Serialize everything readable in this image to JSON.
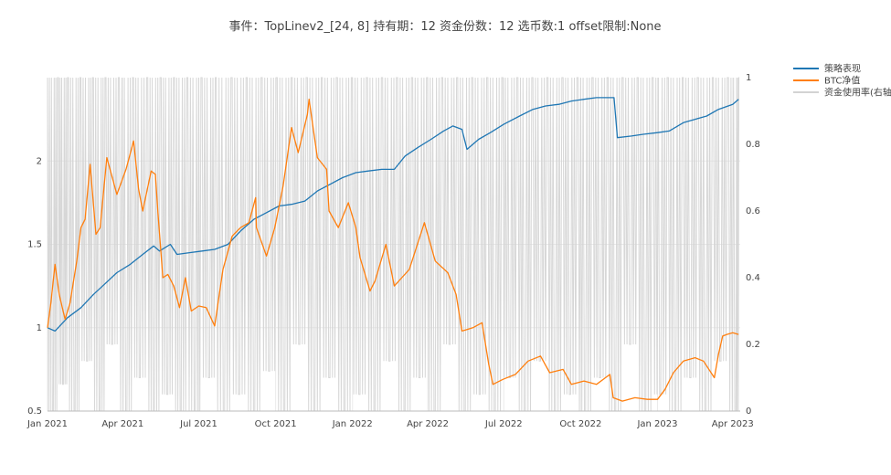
{
  "chart_data": {
    "type": "line",
    "title": "事件：TopLinev2_[24, 8] 持有期：12 资金份数：12 选币数:1 offset限制:None",
    "xlabel": "",
    "ylabel": "",
    "x_range": [
      "2021-01-01",
      "2023-04-10"
    ],
    "x_ticks": [
      {
        "date": "2021-01-01",
        "label": "Jan 2021"
      },
      {
        "date": "2021-04-01",
        "label": "Apr 2021"
      },
      {
        "date": "2021-07-01",
        "label": "Jul 2021"
      },
      {
        "date": "2021-10-01",
        "label": "Oct 2021"
      },
      {
        "date": "2022-01-01",
        "label": "Jan 2022"
      },
      {
        "date": "2022-04-01",
        "label": "Apr 2022"
      },
      {
        "date": "2022-07-01",
        "label": "Jul 2022"
      },
      {
        "date": "2022-10-01",
        "label": "Oct 2022"
      },
      {
        "date": "2023-01-01",
        "label": "Jan 2023"
      },
      {
        "date": "2023-04-01",
        "label": "Apr 2023"
      }
    ],
    "y_left": {
      "ylim": [
        0.5,
        2.5
      ],
      "ticks": [
        0.5,
        1,
        1.5,
        2
      ],
      "tick_labels": [
        "0.5",
        "1",
        "1.5",
        "2"
      ]
    },
    "y_right": {
      "ylim": [
        0,
        1
      ],
      "ticks": [
        0,
        0.2,
        0.4,
        0.6,
        0.8,
        1
      ],
      "tick_labels": [
        "0",
        "0.2",
        "0.4",
        "0.6",
        "0.8",
        "1"
      ]
    },
    "grid": true,
    "legend_position": "top-right",
    "series": [
      {
        "name": "策略表现",
        "color": "#1f77b4",
        "axis": "left",
        "points": [
          [
            "2021-01-01",
            1.0
          ],
          [
            "2021-01-10",
            0.98
          ],
          [
            "2021-01-25",
            1.06
          ],
          [
            "2021-02-10",
            1.12
          ],
          [
            "2021-02-25",
            1.2
          ],
          [
            "2021-03-10",
            1.26
          ],
          [
            "2021-03-25",
            1.33
          ],
          [
            "2021-04-10",
            1.38
          ],
          [
            "2021-04-25",
            1.44
          ],
          [
            "2021-05-08",
            1.49
          ],
          [
            "2021-05-15",
            1.46
          ],
          [
            "2021-05-28",
            1.5
          ],
          [
            "2021-06-05",
            1.44
          ],
          [
            "2021-06-20",
            1.45
          ],
          [
            "2021-07-05",
            1.46
          ],
          [
            "2021-07-20",
            1.47
          ],
          [
            "2021-08-05",
            1.5
          ],
          [
            "2021-08-20",
            1.58
          ],
          [
            "2021-09-05",
            1.65
          ],
          [
            "2021-09-20",
            1.69
          ],
          [
            "2021-10-05",
            1.73
          ],
          [
            "2021-10-20",
            1.74
          ],
          [
            "2021-11-05",
            1.76
          ],
          [
            "2021-11-20",
            1.82
          ],
          [
            "2021-12-05",
            1.86
          ],
          [
            "2021-12-20",
            1.9
          ],
          [
            "2022-01-05",
            1.93
          ],
          [
            "2022-01-20",
            1.94
          ],
          [
            "2022-02-05",
            1.95
          ],
          [
            "2022-02-20",
            1.95
          ],
          [
            "2022-03-05",
            2.03
          ],
          [
            "2022-03-20",
            2.08
          ],
          [
            "2022-04-05",
            2.13
          ],
          [
            "2022-04-20",
            2.18
          ],
          [
            "2022-05-01",
            2.21
          ],
          [
            "2022-05-12",
            2.19
          ],
          [
            "2022-05-18",
            2.07
          ],
          [
            "2022-06-01",
            2.13
          ],
          [
            "2022-06-15",
            2.17
          ],
          [
            "2022-07-01",
            2.22
          ],
          [
            "2022-07-20",
            2.27
          ],
          [
            "2022-08-05",
            2.31
          ],
          [
            "2022-08-20",
            2.33
          ],
          [
            "2022-09-05",
            2.34
          ],
          [
            "2022-09-20",
            2.36
          ],
          [
            "2022-10-05",
            2.37
          ],
          [
            "2022-10-20",
            2.38
          ],
          [
            "2022-11-05",
            2.38
          ],
          [
            "2022-11-10",
            2.38
          ],
          [
            "2022-11-14",
            2.14
          ],
          [
            "2022-12-01",
            2.15
          ],
          [
            "2022-12-15",
            2.16
          ],
          [
            "2023-01-01",
            2.17
          ],
          [
            "2023-01-15",
            2.18
          ],
          [
            "2023-02-01",
            2.23
          ],
          [
            "2023-02-15",
            2.25
          ],
          [
            "2023-03-01",
            2.27
          ],
          [
            "2023-03-15",
            2.31
          ],
          [
            "2023-04-01",
            2.34
          ],
          [
            "2023-04-08",
            2.37
          ]
        ]
      },
      {
        "name": "BTC净值",
        "color": "#ff7f0e",
        "axis": "left",
        "points": [
          [
            "2021-01-01",
            1.0
          ],
          [
            "2021-01-05",
            1.15
          ],
          [
            "2021-01-10",
            1.38
          ],
          [
            "2021-01-15",
            1.2
          ],
          [
            "2021-01-22",
            1.05
          ],
          [
            "2021-01-28",
            1.15
          ],
          [
            "2021-02-05",
            1.4
          ],
          [
            "2021-02-10",
            1.6
          ],
          [
            "2021-02-15",
            1.65
          ],
          [
            "2021-02-21",
            1.98
          ],
          [
            "2021-02-28",
            1.56
          ],
          [
            "2021-03-05",
            1.6
          ],
          [
            "2021-03-13",
            2.02
          ],
          [
            "2021-03-25",
            1.8
          ],
          [
            "2021-04-05",
            1.95
          ],
          [
            "2021-04-14",
            2.12
          ],
          [
            "2021-04-20",
            1.83
          ],
          [
            "2021-04-25",
            1.7
          ],
          [
            "2021-05-05",
            1.94
          ],
          [
            "2021-05-10",
            1.92
          ],
          [
            "2021-05-13",
            1.7
          ],
          [
            "2021-05-19",
            1.3
          ],
          [
            "2021-05-25",
            1.32
          ],
          [
            "2021-06-01",
            1.25
          ],
          [
            "2021-06-08",
            1.12
          ],
          [
            "2021-06-15",
            1.3
          ],
          [
            "2021-06-22",
            1.1
          ],
          [
            "2021-07-01",
            1.13
          ],
          [
            "2021-07-10",
            1.12
          ],
          [
            "2021-07-20",
            1.01
          ],
          [
            "2021-07-30",
            1.35
          ],
          [
            "2021-08-10",
            1.55
          ],
          [
            "2021-08-20",
            1.6
          ],
          [
            "2021-08-30",
            1.63
          ],
          [
            "2021-09-07",
            1.78
          ],
          [
            "2021-09-08",
            1.6
          ],
          [
            "2021-09-20",
            1.43
          ],
          [
            "2021-09-30",
            1.6
          ],
          [
            "2021-10-10",
            1.85
          ],
          [
            "2021-10-20",
            2.2
          ],
          [
            "2021-10-28",
            2.05
          ],
          [
            "2021-11-08",
            2.28
          ],
          [
            "2021-11-10",
            2.37
          ],
          [
            "2021-11-20",
            2.02
          ],
          [
            "2021-12-01",
            1.95
          ],
          [
            "2021-12-04",
            1.7
          ],
          [
            "2021-12-15",
            1.6
          ],
          [
            "2021-12-27",
            1.75
          ],
          [
            "2022-01-05",
            1.6
          ],
          [
            "2022-01-10",
            1.42
          ],
          [
            "2022-01-22",
            1.22
          ],
          [
            "2022-01-28",
            1.28
          ],
          [
            "2022-02-10",
            1.5
          ],
          [
            "2022-02-20",
            1.25
          ],
          [
            "2022-03-01",
            1.3
          ],
          [
            "2022-03-10",
            1.35
          ],
          [
            "2022-03-28",
            1.63
          ],
          [
            "2022-04-10",
            1.4
          ],
          [
            "2022-04-25",
            1.33
          ],
          [
            "2022-05-05",
            1.2
          ],
          [
            "2022-05-12",
            0.98
          ],
          [
            "2022-05-25",
            1.0
          ],
          [
            "2022-06-05",
            1.03
          ],
          [
            "2022-06-13",
            0.78
          ],
          [
            "2022-06-18",
            0.66
          ],
          [
            "2022-06-30",
            0.69
          ],
          [
            "2022-07-15",
            0.72
          ],
          [
            "2022-07-30",
            0.8
          ],
          [
            "2022-08-14",
            0.83
          ],
          [
            "2022-08-25",
            0.73
          ],
          [
            "2022-09-10",
            0.75
          ],
          [
            "2022-09-20",
            0.66
          ],
          [
            "2022-10-05",
            0.68
          ],
          [
            "2022-10-20",
            0.66
          ],
          [
            "2022-11-05",
            0.72
          ],
          [
            "2022-11-09",
            0.58
          ],
          [
            "2022-11-20",
            0.56
          ],
          [
            "2022-12-05",
            0.58
          ],
          [
            "2022-12-20",
            0.57
          ],
          [
            "2023-01-01",
            0.57
          ],
          [
            "2023-01-10",
            0.63
          ],
          [
            "2023-01-20",
            0.73
          ],
          [
            "2023-02-01",
            0.8
          ],
          [
            "2023-02-15",
            0.82
          ],
          [
            "2023-02-25",
            0.8
          ],
          [
            "2023-03-10",
            0.7
          ],
          [
            "2023-03-15",
            0.84
          ],
          [
            "2023-03-20",
            0.95
          ],
          [
            "2023-03-25",
            0.96
          ],
          [
            "2023-04-01",
            0.97
          ],
          [
            "2023-04-08",
            0.96
          ]
        ]
      },
      {
        "name": "资金使用率(右轴)",
        "color": "#d3d3d3",
        "axis": "right",
        "rendering": "dense oscillation between 0 and 1",
        "points": [
          [
            "2021-01-01",
            1.0
          ],
          [
            "2021-01-08",
            0.0
          ],
          [
            "2021-01-14",
            1.0
          ],
          [
            "2021-01-20",
            0.08
          ],
          [
            "2021-01-26",
            1.0
          ],
          [
            "2021-02-03",
            0.0
          ],
          [
            "2021-02-10",
            1.0
          ],
          [
            "2021-02-18",
            0.15
          ],
          [
            "2021-02-25",
            1.0
          ],
          [
            "2021-03-05",
            0.0
          ],
          [
            "2021-03-12",
            1.0
          ],
          [
            "2021-03-20",
            0.2
          ],
          [
            "2021-03-28",
            1.0
          ],
          [
            "2021-04-06",
            0.0
          ],
          [
            "2021-04-14",
            1.0
          ],
          [
            "2021-04-22",
            0.1
          ],
          [
            "2021-05-01",
            1.0
          ],
          [
            "2021-05-09",
            0.0
          ],
          [
            "2021-05-17",
            1.0
          ],
          [
            "2021-05-25",
            0.05
          ],
          [
            "2021-06-02",
            1.0
          ],
          [
            "2021-06-10",
            0.0
          ],
          [
            "2021-06-18",
            1.0
          ],
          [
            "2021-06-27",
            0.0
          ],
          [
            "2021-07-05",
            1.0
          ],
          [
            "2021-07-14",
            0.1
          ],
          [
            "2021-07-22",
            1.0
          ],
          [
            "2021-08-01",
            0.0
          ],
          [
            "2021-08-10",
            1.0
          ],
          [
            "2021-08-19",
            0.05
          ],
          [
            "2021-08-28",
            1.0
          ],
          [
            "2021-09-06",
            0.0
          ],
          [
            "2021-09-15",
            1.0
          ],
          [
            "2021-09-24",
            0.12
          ],
          [
            "2021-10-03",
            1.0
          ],
          [
            "2021-10-12",
            0.0
          ],
          [
            "2021-10-21",
            1.0
          ],
          [
            "2021-10-30",
            0.2
          ],
          [
            "2021-11-08",
            1.0
          ],
          [
            "2021-11-17",
            0.0
          ],
          [
            "2021-11-26",
            1.0
          ],
          [
            "2021-12-05",
            0.1
          ],
          [
            "2021-12-14",
            1.0
          ],
          [
            "2021-12-23",
            0.0
          ],
          [
            "2022-01-01",
            1.0
          ],
          [
            "2022-01-10",
            0.05
          ],
          [
            "2022-01-19",
            1.0
          ],
          [
            "2022-01-28",
            0.0
          ],
          [
            "2022-02-06",
            1.0
          ],
          [
            "2022-02-15",
            0.15
          ],
          [
            "2022-02-24",
            1.0
          ],
          [
            "2022-03-05",
            0.0
          ],
          [
            "2022-03-14",
            1.0
          ],
          [
            "2022-03-23",
            0.1
          ],
          [
            "2022-04-01",
            1.0
          ],
          [
            "2022-04-10",
            0.0
          ],
          [
            "2022-04-19",
            1.0
          ],
          [
            "2022-04-28",
            0.2
          ],
          [
            "2022-05-07",
            1.0
          ],
          [
            "2022-05-16",
            0.0
          ],
          [
            "2022-05-25",
            1.0
          ],
          [
            "2022-06-03",
            0.05
          ],
          [
            "2022-06-12",
            1.0
          ],
          [
            "2022-06-21",
            0.0
          ],
          [
            "2022-06-30",
            1.0
          ],
          [
            "2022-07-09",
            0.1
          ],
          [
            "2022-07-18",
            1.0
          ],
          [
            "2022-07-27",
            0.0
          ],
          [
            "2022-08-05",
            1.0
          ],
          [
            "2022-08-14",
            0.15
          ],
          [
            "2022-08-23",
            1.0
          ],
          [
            "2022-09-01",
            0.0
          ],
          [
            "2022-09-10",
            1.0
          ],
          [
            "2022-09-19",
            0.05
          ],
          [
            "2022-09-28",
            1.0
          ],
          [
            "2022-10-07",
            0.0
          ],
          [
            "2022-10-16",
            1.0
          ],
          [
            "2022-10-25",
            0.1
          ],
          [
            "2022-11-03",
            1.0
          ],
          [
            "2022-11-12",
            0.0
          ],
          [
            "2022-11-21",
            1.0
          ],
          [
            "2022-11-30",
            0.2
          ],
          [
            "2022-12-09",
            1.0
          ],
          [
            "2022-12-18",
            0.0
          ],
          [
            "2022-12-27",
            1.0
          ],
          [
            "2023-01-05",
            0.05
          ],
          [
            "2023-01-14",
            1.0
          ],
          [
            "2023-01-23",
            0.0
          ],
          [
            "2023-02-01",
            1.0
          ],
          [
            "2023-02-10",
            0.1
          ],
          [
            "2023-02-19",
            1.0
          ],
          [
            "2023-02-28",
            0.0
          ],
          [
            "2023-03-09",
            1.0
          ],
          [
            "2023-03-18",
            0.15
          ],
          [
            "2023-03-27",
            1.0
          ],
          [
            "2023-04-05",
            0.0
          ],
          [
            "2023-04-09",
            1.0
          ]
        ]
      }
    ]
  }
}
